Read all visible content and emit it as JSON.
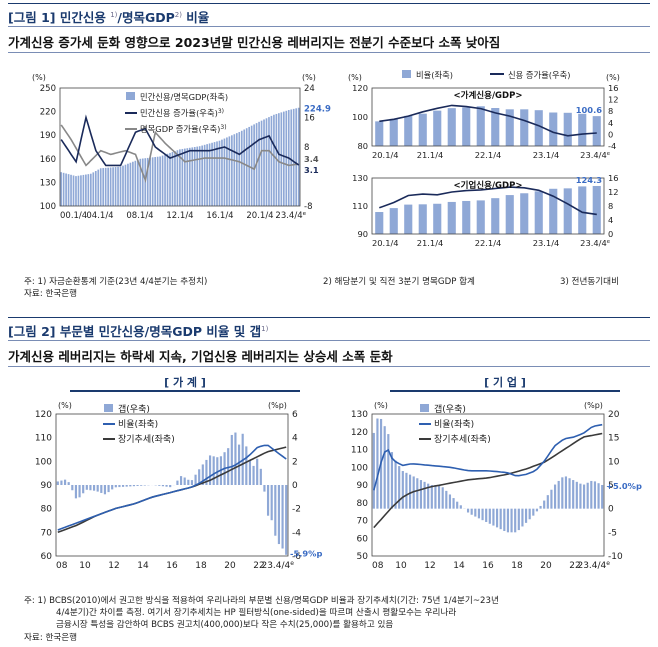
{
  "fig1": {
    "title": "[그림 1] 민간신용 ",
    "title_sup1": "1)",
    "title_mid": "/명목GDP",
    "title_sup2": "2)",
    "title_end": " 비율",
    "subtitle": "가계신용 증가세 둔화 영향으로 2023년말 민간신용 레버리지는 전분기 수준보다 소폭 낮아짐",
    "notes": {
      "n1": "주: 1) 자금순환통계 기준(23년 4/4분기는 추정치)",
      "n2": "2) 해당분기 및 직전 3분기 명목GDP 합계",
      "n3": "3) 전년동기대비",
      "src": "자료: 한국은행"
    }
  },
  "fig2": {
    "title": "[그림 2] 부문별 민간신용/명목GDP 비율 및 갭",
    "title_sup": "1)",
    "subtitle": "가계신용 레버리지는 하락세 지속, 기업신용 레버리지는 상승세 소폭 둔화",
    "tab_left": "[ 가 계 ]",
    "tab_right": "[ 기 업 ]",
    "notes": {
      "n1": "주: 1) BCBS(2010)에서 권고한 방식을 적용하여 우리나라의 부문별 신용/명목GDP 비율과 장기추세치(기간: 75년 1/4분기~23년",
      "n2": "4/4분기)간 차이를 측정. 여기서 장기추세치는 HP 필터방식(one-sided)을 따르며 산출시 평활모수는 우리나라",
      "n3": "금융시장 특성을 감안하여 BCBS 권고치(400,000)보다 작은 수치(25,000)를 활용하고 있음",
      "src": "자료: 한국은행"
    }
  },
  "colors": {
    "bar": "#8fa8d6",
    "line_dark": "#1a2a5a",
    "line_gray": "#888888",
    "trend": "#3a3a3a",
    "title": "#1a3a6e"
  },
  "chart_data": [
    {
      "id": "c1",
      "type": "bar+line",
      "unit_left": "(%)",
      "unit_right": "(%)",
      "y_left": {
        "min": 100,
        "max": 250,
        "ticks": [
          "100",
          "130",
          "160",
          "190",
          "220",
          "250"
        ]
      },
      "y_right": {
        "min": -8,
        "max": 24,
        "ticks": [
          "-8",
          "8",
          "16",
          "24"
        ]
      },
      "x_ticks": [
        "00.1/4",
        "04.1/4",
        "08.1/4",
        "12.1/4",
        "16.1/4",
        "20.1/4",
        "23.4/4"
      ],
      "x_tick_sup": "e",
      "legend": [
        "민간신용/명목GDP(좌축)",
        "민간신용 증가율(우축)",
        "명목GDP 증가율(우축)"
      ],
      "legend_sup": "3)",
      "bar_knots": [
        [
          0,
          143
        ],
        [
          6,
          138
        ],
        [
          12,
          141
        ],
        [
          16,
          148
        ],
        [
          24,
          150
        ],
        [
          32,
          160
        ],
        [
          40,
          163
        ],
        [
          48,
          172
        ],
        [
          56,
          176
        ],
        [
          64,
          183
        ],
        [
          72,
          194
        ],
        [
          80,
          207
        ],
        [
          86,
          216
        ],
        [
          92,
          222
        ],
        [
          96,
          224.9
        ]
      ],
      "credit_growth_knots": [
        [
          0,
          10
        ],
        [
          6,
          4
        ],
        [
          10,
          16
        ],
        [
          14,
          7
        ],
        [
          18,
          3
        ],
        [
          24,
          3
        ],
        [
          30,
          12
        ],
        [
          34,
          13
        ],
        [
          38,
          8
        ],
        [
          44,
          5
        ],
        [
          52,
          7
        ],
        [
          60,
          7
        ],
        [
          66,
          8
        ],
        [
          72,
          6
        ],
        [
          80,
          10
        ],
        [
          84,
          11
        ],
        [
          88,
          6
        ],
        [
          92,
          5
        ],
        [
          96,
          3.1
        ]
      ],
      "gdp_growth_knots": [
        [
          0,
          14
        ],
        [
          4,
          10
        ],
        [
          10,
          3
        ],
        [
          16,
          7
        ],
        [
          20,
          6
        ],
        [
          26,
          7
        ],
        [
          30,
          6
        ],
        [
          34,
          -1
        ],
        [
          38,
          12
        ],
        [
          42,
          9
        ],
        [
          50,
          4
        ],
        [
          58,
          5
        ],
        [
          66,
          5
        ],
        [
          72,
          4
        ],
        [
          78,
          2
        ],
        [
          81,
          7
        ],
        [
          84,
          7
        ],
        [
          88,
          4
        ],
        [
          92,
          3
        ],
        [
          96,
          3.4
        ]
      ],
      "labels": {
        "bar_last": "224.9",
        "credit_last": "3.1",
        "gdp_last": "3.4"
      }
    },
    {
      "id": "c2",
      "type": "bar+line",
      "title": "<가계신용/GDP>",
      "unit_left": "(%)",
      "unit_right": "(%)",
      "y_left": {
        "min": 80,
        "max": 120,
        "ticks": [
          "80",
          "100",
          "120"
        ]
      },
      "y_right": {
        "min": -4,
        "max": 16,
        "ticks": [
          "-4",
          "0",
          "4",
          "8",
          "12",
          "16"
        ]
      },
      "x_ticks": [
        "20.1/4",
        "21.1/4",
        "22.1/4",
        "23.1/4",
        "23.4/4"
      ],
      "x_tick_sup": "e",
      "legend": [
        "비율(좌축)",
        "신용 증가율(우축)"
      ],
      "values": [
        97.0,
        98.7,
        100.8,
        102.3,
        104.4,
        106.1,
        106.6,
        107.4,
        106.2,
        105.3,
        105.3,
        104.7,
        103.1,
        102.9,
        102.2,
        100.6
      ],
      "growth": [
        4.5,
        5.2,
        6.3,
        7.8,
        9.0,
        10.0,
        9.6,
        8.9,
        7.4,
        6.3,
        4.8,
        3.0,
        0.7,
        -0.5,
        0.1,
        0.5
      ],
      "labels": {
        "bar_last": "100.6"
      }
    },
    {
      "id": "c3",
      "type": "bar+line",
      "title": "<기업신용/GDP>",
      "y_left": {
        "min": 90,
        "max": 130,
        "ticks": [
          "90",
          "110",
          "130"
        ]
      },
      "y_right": {
        "min": 0,
        "max": 16,
        "ticks": [
          "0",
          "4",
          "8",
          "12",
          "16"
        ]
      },
      "x_ticks": [
        "20.1/4",
        "21.1/4",
        "22.1/4",
        "23.1/4",
        "23.4/4"
      ],
      "x_tick_sup": "e",
      "values": [
        105.7,
        108.5,
        111.0,
        111.2,
        111.6,
        112.9,
        113.6,
        114.0,
        115.6,
        117.8,
        119.1,
        120.5,
        122.3,
        122.6,
        124.0,
        124.3
      ],
      "growth": [
        7.5,
        9.0,
        11.0,
        11.4,
        11.2,
        12.0,
        12.4,
        12.6,
        13.0,
        13.4,
        13.2,
        12.5,
        10.8,
        8.6,
        6.2,
        5.6
      ],
      "labels": {
        "bar_last": "124.3"
      }
    },
    {
      "id": "c4",
      "type": "bar+line",
      "unit_left": "(%)",
      "unit_right": "(%p)",
      "y_left": {
        "min": 60,
        "max": 120,
        "ticks": [
          "60",
          "70",
          "80",
          "90",
          "100",
          "110",
          "120"
        ]
      },
      "y_right": {
        "min": -6,
        "max": 6,
        "ticks": [
          "-6",
          "-4",
          "-2",
          "0",
          "2",
          "4",
          "6"
        ]
      },
      "x_ticks": [
        "08",
        "10",
        "12",
        "14",
        "16",
        "18",
        "20",
        "22",
        "23.4/4"
      ],
      "x_tick_sup": "e",
      "legend": [
        "갭(우축)",
        "비율(좌축)",
        "장기추세(좌축)"
      ],
      "ratio_knots": [
        [
          0,
          71
        ],
        [
          8,
          74
        ],
        [
          16,
          77
        ],
        [
          24,
          80
        ],
        [
          32,
          82
        ],
        [
          40,
          85
        ],
        [
          48,
          87
        ],
        [
          56,
          89
        ],
        [
          60,
          91
        ],
        [
          66,
          95
        ],
        [
          70,
          97
        ],
        [
          74,
          98
        ],
        [
          80,
          102
        ],
        [
          84,
          106
        ],
        [
          88,
          107
        ],
        [
          92,
          104
        ],
        [
          96,
          101
        ]
      ],
      "trend_knots": [
        [
          0,
          70
        ],
        [
          8,
          73
        ],
        [
          16,
          77
        ],
        [
          24,
          80
        ],
        [
          32,
          82
        ],
        [
          40,
          85
        ],
        [
          48,
          87
        ],
        [
          56,
          89
        ],
        [
          64,
          92
        ],
        [
          72,
          96
        ],
        [
          80,
          100
        ],
        [
          88,
          104
        ],
        [
          96,
          106
        ]
      ],
      "gap_knots": [
        [
          0,
          0.3
        ],
        [
          4,
          0.5
        ],
        [
          8,
          -1.3
        ],
        [
          12,
          -0.4
        ],
        [
          16,
          -0.5
        ],
        [
          20,
          -0.8
        ],
        [
          24,
          -0.2
        ],
        [
          32,
          -0.1
        ],
        [
          40,
          0
        ],
        [
          48,
          -0.2
        ],
        [
          52,
          0.8
        ],
        [
          56,
          0.3
        ],
        [
          60,
          1.5
        ],
        [
          64,
          2.5
        ],
        [
          68,
          2.3
        ],
        [
          72,
          3.2
        ],
        [
          74,
          5
        ],
        [
          76,
          3.3
        ],
        [
          78,
          4.5
        ],
        [
          80,
          2.5
        ],
        [
          82,
          1.5
        ],
        [
          84,
          2.3
        ],
        [
          86,
          0.9
        ],
        [
          88,
          -2.5
        ],
        [
          90,
          -3
        ],
        [
          92,
          -4.8
        ],
        [
          94,
          -5.2
        ],
        [
          96,
          -5.9
        ]
      ],
      "labels": {
        "gap_last": "-5.9%p"
      }
    },
    {
      "id": "c5",
      "type": "bar+line",
      "unit_left": "(%)",
      "unit_right": "(%p)",
      "y_left": {
        "min": 50,
        "max": 130,
        "ticks": [
          "50",
          "60",
          "70",
          "80",
          "90",
          "100",
          "110",
          "120",
          "130"
        ]
      },
      "y_right": {
        "min": -10,
        "max": 20,
        "ticks": [
          "-10",
          "-5",
          "0",
          "5",
          "10",
          "15",
          "20"
        ]
      },
      "x_ticks": [
        "08",
        "10",
        "12",
        "14",
        "16",
        "18",
        "20",
        "22",
        "23.4/4"
      ],
      "x_tick_sup": "e",
      "legend": [
        "갭(우축)",
        "비율(좌축)",
        "장기추세(좌축)"
      ],
      "ratio_knots": [
        [
          0,
          87
        ],
        [
          2,
          97
        ],
        [
          4,
          108
        ],
        [
          6,
          110
        ],
        [
          8,
          104
        ],
        [
          12,
          101
        ],
        [
          16,
          102
        ],
        [
          24,
          101
        ],
        [
          32,
          100
        ],
        [
          40,
          98
        ],
        [
          48,
          98
        ],
        [
          56,
          97
        ],
        [
          60,
          95
        ],
        [
          64,
          96
        ],
        [
          68,
          98
        ],
        [
          72,
          104
        ],
        [
          76,
          112
        ],
        [
          80,
          116
        ],
        [
          84,
          117
        ],
        [
          88,
          119
        ],
        [
          92,
          123
        ],
        [
          96,
          124
        ]
      ],
      "trend_knots": [
        [
          0,
          66
        ],
        [
          4,
          72
        ],
        [
          8,
          78
        ],
        [
          12,
          83
        ],
        [
          16,
          86
        ],
        [
          24,
          89
        ],
        [
          32,
          91
        ],
        [
          40,
          93
        ],
        [
          48,
          94
        ],
        [
          56,
          96
        ],
        [
          64,
          99
        ],
        [
          72,
          103
        ],
        [
          80,
          110
        ],
        [
          88,
          117
        ],
        [
          96,
          119
        ]
      ],
      "gap_knots": [
        [
          0,
          16
        ],
        [
          2,
          20
        ],
        [
          4,
          18
        ],
        [
          6,
          16
        ],
        [
          8,
          11
        ],
        [
          12,
          8
        ],
        [
          16,
          7
        ],
        [
          20,
          6
        ],
        [
          24,
          5
        ],
        [
          28,
          5
        ],
        [
          32,
          3
        ],
        [
          36,
          1
        ],
        [
          40,
          -1
        ],
        [
          44,
          -2
        ],
        [
          48,
          -3
        ],
        [
          52,
          -4
        ],
        [
          56,
          -5
        ],
        [
          60,
          -5
        ],
        [
          64,
          -3
        ],
        [
          68,
          -1
        ],
        [
          72,
          2
        ],
        [
          76,
          5
        ],
        [
          80,
          7
        ],
        [
          84,
          6
        ],
        [
          88,
          5
        ],
        [
          92,
          6
        ],
        [
          96,
          5
        ]
      ],
      "labels": {
        "gap_last": "+5.0%p"
      }
    }
  ]
}
